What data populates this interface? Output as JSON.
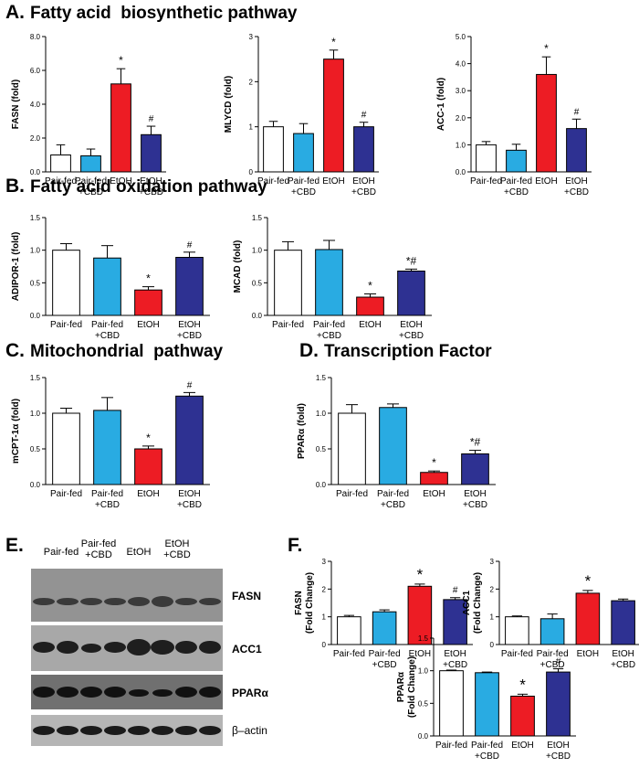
{
  "colors": {
    "pair_fed": "#ffffff",
    "pair_fed_cbd": "#29abe2",
    "etoh": "#ed1c24",
    "etoh_cbd": "#2e3192"
  },
  "sections": {
    "A": {
      "letter": "A.",
      "title": "Fatty acid  biosynthetic pathway"
    },
    "B": {
      "letter": "B.",
      "title": "Fatty acid oxidation pathway"
    },
    "C": {
      "letter": "C.",
      "title": "Mitochondrial  pathway"
    },
    "D": {
      "letter": "D.",
      "title": "Transcription Factor"
    },
    "E": {
      "letter": "E."
    },
    "F": {
      "letter": "F."
    }
  },
  "chart_data": [
    {
      "id": "fasn",
      "type": "bar",
      "ylabel": "FASN (fold)",
      "ylim": [
        0,
        8
      ],
      "yticks": [
        "0.0",
        "2.0",
        "4.0",
        "6.0",
        "8.0"
      ],
      "categories": [
        [
          "Pair-fed"
        ],
        [
          "Pair-fed",
          "+CBD"
        ],
        [
          "EtOH"
        ],
        [
          "EtOH",
          "+CBD"
        ]
      ],
      "values": [
        1.0,
        0.95,
        5.2,
        2.2
      ],
      "errors": [
        0.6,
        0.4,
        0.9,
        0.5
      ],
      "annotations": [
        "",
        "",
        "*",
        "#"
      ]
    },
    {
      "id": "mlycd",
      "type": "bar",
      "ylabel": "MLYCD (fold)",
      "ylim": [
        0,
        3
      ],
      "yticks": [
        "0",
        "1",
        "2",
        "3"
      ],
      "categories": [
        [
          "Pair-fed"
        ],
        [
          "Pair-fed",
          "+CBD"
        ],
        [
          "EtOH"
        ],
        [
          "EtOH",
          "+CBD"
        ]
      ],
      "values": [
        1.0,
        0.85,
        2.5,
        1.0
      ],
      "errors": [
        0.12,
        0.22,
        0.2,
        0.1
      ],
      "annotations": [
        "",
        "",
        "*",
        "#"
      ]
    },
    {
      "id": "acc1",
      "type": "bar",
      "ylabel": "ACC-1 (fold)",
      "ylim": [
        0,
        5
      ],
      "yticks": [
        "0.0",
        "1.0",
        "2.0",
        "3.0",
        "4.0",
        "5.0"
      ],
      "categories": [
        [
          "Pair-fed"
        ],
        [
          "Pair-fed",
          "+CBD"
        ],
        [
          "EtOH"
        ],
        [
          "EtOH",
          "+CBD"
        ]
      ],
      "values": [
        1.0,
        0.8,
        3.6,
        1.6
      ],
      "errors": [
        0.12,
        0.22,
        0.65,
        0.35
      ],
      "annotations": [
        "",
        "",
        "*",
        "#"
      ]
    },
    {
      "id": "adipor1",
      "type": "bar",
      "ylabel": "ADIPOR-1 (fold)",
      "ylim": [
        0,
        1.5
      ],
      "yticks": [
        "0.0",
        "0.5",
        "1.0",
        "1.5"
      ],
      "categories": [
        [
          "Pair-fed"
        ],
        [
          "Pair-fed",
          "+CBD"
        ],
        [
          "EtOH"
        ],
        [
          "EtOH",
          "+CBD"
        ]
      ],
      "values": [
        1.0,
        0.88,
        0.39,
        0.89
      ],
      "errors": [
        0.1,
        0.19,
        0.05,
        0.08
      ],
      "annotations": [
        "",
        "",
        "*",
        "#"
      ]
    },
    {
      "id": "mcad",
      "type": "bar",
      "ylabel": "MCAD (fold)",
      "ylim": [
        0,
        1.5
      ],
      "yticks": [
        "0.0",
        "0.5",
        "1.0",
        "1.5"
      ],
      "categories": [
        [
          "Pair-fed"
        ],
        [
          "Pair-fed",
          "+CBD"
        ],
        [
          "EtOH"
        ],
        [
          "EtOH",
          "+CBD"
        ]
      ],
      "values": [
        1.0,
        1.01,
        0.28,
        0.68
      ],
      "errors": [
        0.13,
        0.14,
        0.05,
        0.03
      ],
      "annotations": [
        "",
        "",
        "*",
        "*#"
      ]
    },
    {
      "id": "mcpt1a",
      "type": "bar",
      "ylabel": "mCPT-1α (fold)",
      "ylim": [
        0,
        1.5
      ],
      "yticks": [
        "0.0",
        "0.5",
        "1.0",
        "1.5"
      ],
      "categories": [
        [
          "Pair-fed"
        ],
        [
          "Pair-fed",
          "+CBD"
        ],
        [
          "EtOH"
        ],
        [
          "EtOH",
          "+CBD"
        ]
      ],
      "values": [
        1.0,
        1.04,
        0.5,
        1.24
      ],
      "errors": [
        0.07,
        0.18,
        0.04,
        0.05
      ],
      "annotations": [
        "",
        "",
        "*",
        "#"
      ]
    },
    {
      "id": "ppara_d",
      "type": "bar",
      "ylabel": "PPARα (fold)",
      "ylim": [
        0,
        1.5
      ],
      "yticks": [
        "0.0",
        "0.5",
        "1.0",
        "1.5"
      ],
      "categories": [
        [
          "Pair-fed"
        ],
        [
          "Pair-fed",
          "+CBD"
        ],
        [
          "EtOH"
        ],
        [
          "EtOH",
          "+CBD"
        ]
      ],
      "values": [
        1.0,
        1.08,
        0.17,
        0.43
      ],
      "errors": [
        0.12,
        0.05,
        0.02,
        0.05
      ],
      "annotations": [
        "",
        "",
        "*",
        "*#"
      ]
    },
    {
      "id": "fasn_f",
      "type": "bar",
      "ylabel": [
        "FASN",
        "(Fold Change)"
      ],
      "ylim": [
        0,
        3
      ],
      "yticks": [
        "0",
        "1",
        "2",
        "3"
      ],
      "categories": [
        [
          "Pair-fed"
        ],
        [
          "Pair-fed",
          "+CBD"
        ],
        [
          "EtOH"
        ],
        [
          "EtOH",
          "+CBD"
        ]
      ],
      "values": [
        1.0,
        1.18,
        2.1,
        1.62
      ],
      "errors": [
        0.05,
        0.07,
        0.08,
        0.07
      ],
      "annotations": [
        "",
        "",
        "*",
        "#"
      ]
    },
    {
      "id": "acc1_f",
      "type": "bar",
      "ylabel": [
        "ACC1",
        "(Fold Change)"
      ],
      "ylim": [
        0,
        3
      ],
      "yticks": [
        "0",
        "1",
        "2",
        "3"
      ],
      "categories": [
        [
          "Pair-fed"
        ],
        [
          "Pair-fed",
          "+CBD"
        ],
        [
          "EtOH"
        ],
        [
          "EtOH",
          "+CBD"
        ]
      ],
      "values": [
        1.0,
        0.93,
        1.85,
        1.58
      ],
      "errors": [
        0.03,
        0.17,
        0.1,
        0.06
      ],
      "annotations": [
        "",
        "",
        "*",
        ""
      ]
    },
    {
      "id": "ppara_f",
      "type": "bar",
      "ylabel": [
        "PPARα",
        "(Fold Change)"
      ],
      "ylim": [
        0,
        1.5
      ],
      "yticks": [
        "0.0",
        "0.5",
        "1.0",
        "1.5"
      ],
      "categories": [
        [
          "Pair-fed"
        ],
        [
          "Pair-fed",
          "+CBD"
        ],
        [
          "EtOH"
        ],
        [
          "EtOH",
          "+CBD"
        ]
      ],
      "values": [
        1.0,
        0.97,
        0.61,
        0.98
      ],
      "errors": [
        0.01,
        0.01,
        0.03,
        0.05
      ],
      "annotations": [
        "",
        "",
        "*",
        "#"
      ]
    }
  ],
  "blot": {
    "lanes": [
      [
        "Pair-fed"
      ],
      [
        "Pair-fed",
        "+CBD"
      ],
      [
        "EtOH"
      ],
      [
        "EtOH",
        "+CBD"
      ]
    ],
    "proteins": [
      "FASN",
      "ACC1",
      "PPARα",
      "β–actin"
    ]
  }
}
